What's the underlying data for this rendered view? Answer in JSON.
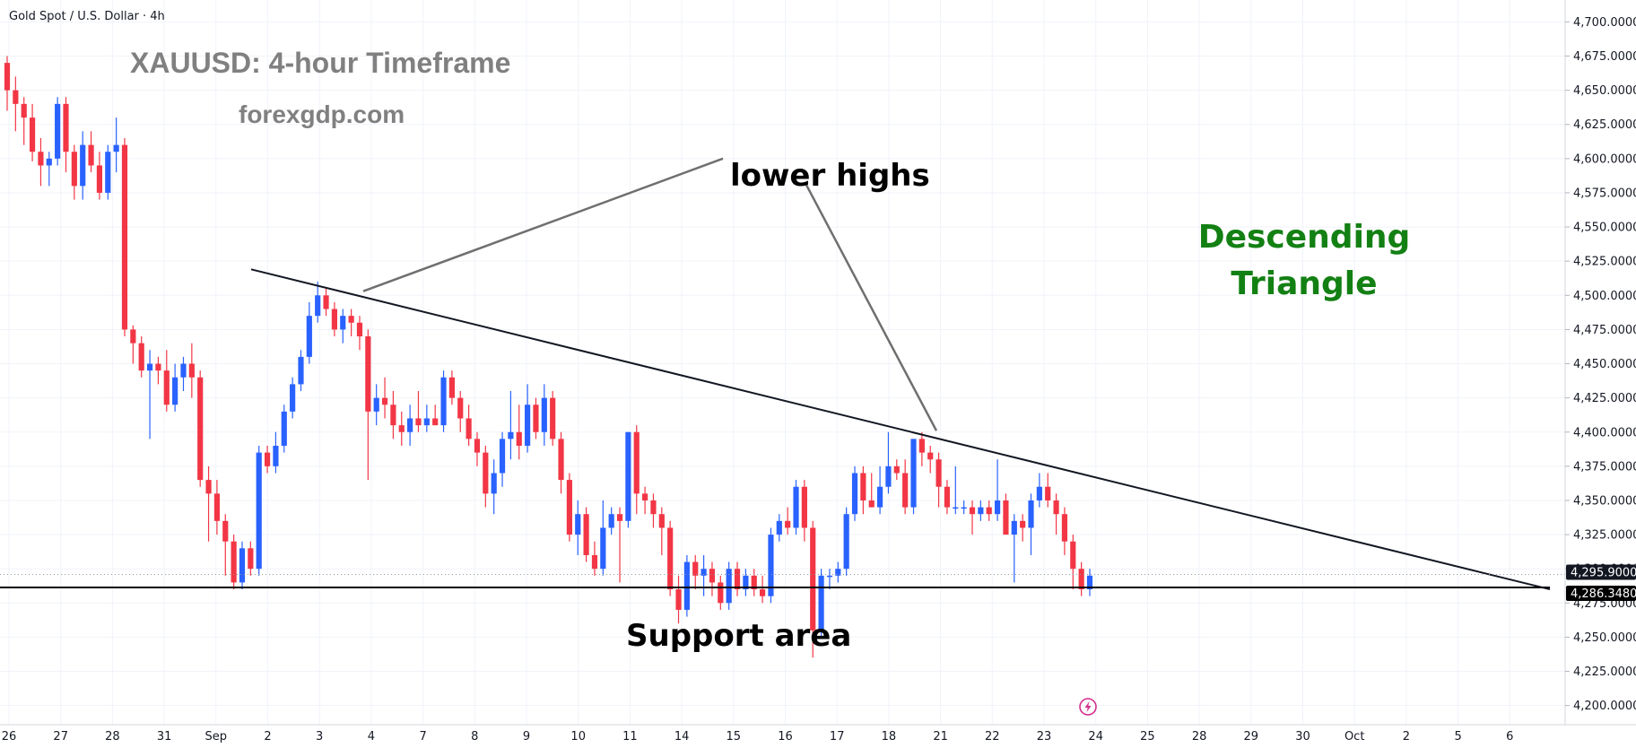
{
  "header": {
    "symbol_line": "Gold Spot / U.S. Dollar · 4h"
  },
  "title": "XAUUSD: 4-hour Timeframe",
  "site": "forexgdp.com",
  "annotations": {
    "lower_highs": "lower highs",
    "support": "Support area",
    "pattern_line1": "Descending",
    "pattern_line2": "Triangle"
  },
  "colors": {
    "up": "#2962ff",
    "down": "#f23645",
    "pattern_text": "#138013",
    "muted_text": "#808080",
    "trendline": "#131722",
    "grid": "#f0f3fa"
  },
  "icons": {
    "bottom": "lightning-icon"
  },
  "chart_data": {
    "type": "candlestick",
    "title": "XAUUSD: 4-hour Timeframe",
    "timeframe": "4h",
    "instrument": "Gold Spot / U.S. Dollar",
    "ylim": [
      4186,
      4716
    ],
    "y_ticks": [
      "4,700.0000",
      "4,675.0000",
      "4,650.0000",
      "4,625.0000",
      "4,600.0000",
      "4,575.0000",
      "4,550.0000",
      "4,525.0000",
      "4,500.0000",
      "4,475.0000",
      "4,450.0000",
      "4,425.0000",
      "4,400.0000",
      "4,375.0000",
      "4,350.0000",
      "4,325.0000",
      "4,300.0000",
      "4,275.0000",
      "4,250.0000",
      "4,225.0000",
      "4,200.0000"
    ],
    "x_ticks": [
      "26",
      "27",
      "28",
      "31",
      "Sep",
      "2",
      "3",
      "4",
      "7",
      "8",
      "9",
      "10",
      "11",
      "14",
      "15",
      "16",
      "17",
      "18",
      "21",
      "22",
      "23",
      "24",
      "25",
      "28",
      "29",
      "30",
      "Oct",
      "2",
      "5",
      "6"
    ],
    "price_labels": [
      {
        "label": "4,295.9000",
        "value": 4295.9,
        "style": "current"
      },
      {
        "label": "4,286.3480",
        "value": 4286.348,
        "style": "support"
      }
    ],
    "support_level": 4286.348,
    "current_price": 4295.9,
    "grid": true,
    "candles": [
      [
        4670,
        4675,
        4635,
        4650
      ],
      [
        4650,
        4660,
        4620,
        4640
      ],
      [
        4640,
        4645,
        4610,
        4630
      ],
      [
        4630,
        4640,
        4598,
        4605
      ],
      [
        4605,
        4615,
        4580,
        4595
      ],
      [
        4595,
        4605,
        4580,
        4600
      ],
      [
        4600,
        4645,
        4595,
        4640
      ],
      [
        4640,
        4645,
        4590,
        4605
      ],
      [
        4605,
        4610,
        4570,
        4580
      ],
      [
        4580,
        4620,
        4570,
        4610
      ],
      [
        4610,
        4620,
        4590,
        4595
      ],
      [
        4595,
        4605,
        4570,
        4575
      ],
      [
        4575,
        4610,
        4570,
        4605
      ],
      [
        4605,
        4630,
        4590,
        4610
      ],
      [
        4610,
        4615,
        4470,
        4475
      ],
      [
        4475,
        4478,
        4450,
        4465
      ],
      [
        4465,
        4470,
        4440,
        4445
      ],
      [
        4445,
        4460,
        4395,
        4450
      ],
      [
        4450,
        4455,
        4435,
        4445
      ],
      [
        4445,
        4460,
        4415,
        4420
      ],
      [
        4420,
        4450,
        4415,
        4440
      ],
      [
        4440,
        4455,
        4430,
        4450
      ],
      [
        4450,
        4465,
        4425,
        4440
      ],
      [
        4440,
        4445,
        4360,
        4365
      ],
      [
        4365,
        4375,
        4320,
        4355
      ],
      [
        4355,
        4365,
        4325,
        4335
      ],
      [
        4335,
        4340,
        4295,
        4320
      ],
      [
        4320,
        4325,
        4285,
        4290
      ],
      [
        4290,
        4320,
        4285,
        4315
      ],
      [
        4315,
        4320,
        4295,
        4300
      ],
      [
        4300,
        4390,
        4295,
        4385
      ],
      [
        4385,
        4390,
        4370,
        4375
      ],
      [
        4375,
        4400,
        4370,
        4390
      ],
      [
        4390,
        4420,
        4385,
        4415
      ],
      [
        4415,
        4440,
        4410,
        4435
      ],
      [
        4435,
        4460,
        4430,
        4455
      ],
      [
        4455,
        4495,
        4450,
        4485
      ],
      [
        4485,
        4510,
        4480,
        4500
      ],
      [
        4500,
        4505,
        4485,
        4490
      ],
      [
        4490,
        4495,
        4470,
        4475
      ],
      [
        4475,
        4490,
        4465,
        4485
      ],
      [
        4485,
        4490,
        4470,
        4480
      ],
      [
        4480,
        4485,
        4460,
        4470
      ],
      [
        4470,
        4475,
        4365,
        4415
      ],
      [
        4415,
        4435,
        4405,
        4425
      ],
      [
        4425,
        4440,
        4410,
        4420
      ],
      [
        4420,
        4430,
        4395,
        4405
      ],
      [
        4405,
        4415,
        4390,
        4400
      ],
      [
        4400,
        4420,
        4390,
        4410
      ],
      [
        4410,
        4430,
        4400,
        4405
      ],
      [
        4405,
        4420,
        4400,
        4410
      ],
      [
        4410,
        4420,
        4405,
        4405
      ],
      [
        4405,
        4445,
        4400,
        4440
      ],
      [
        4440,
        4445,
        4420,
        4425
      ],
      [
        4425,
        4430,
        4400,
        4410
      ],
      [
        4410,
        4420,
        4390,
        4395
      ],
      [
        4395,
        4400,
        4375,
        4385
      ],
      [
        4385,
        4390,
        4345,
        4355
      ],
      [
        4355,
        4380,
        4340,
        4370
      ],
      [
        4370,
        4400,
        4360,
        4395
      ],
      [
        4395,
        4430,
        4380,
        4400
      ],
      [
        4400,
        4420,
        4380,
        4390
      ],
      [
        4390,
        4435,
        4385,
        4420
      ],
      [
        4420,
        4425,
        4395,
        4400
      ],
      [
        4400,
        4435,
        4390,
        4425
      ],
      [
        4425,
        4430,
        4390,
        4395
      ],
      [
        4395,
        4400,
        4355,
        4365
      ],
      [
        4365,
        4370,
        4320,
        4325
      ],
      [
        4325,
        4350,
        4310,
        4340
      ],
      [
        4340,
        4345,
        4305,
        4310
      ],
      [
        4310,
        4320,
        4295,
        4300
      ],
      [
        4300,
        4350,
        4295,
        4330
      ],
      [
        4330,
        4345,
        4325,
        4340
      ],
      [
        4340,
        4345,
        4290,
        4335
      ],
      [
        4335,
        4400,
        4330,
        4400
      ],
      [
        4400,
        4405,
        4340,
        4355
      ],
      [
        4355,
        4360,
        4340,
        4350
      ],
      [
        4350,
        4355,
        4330,
        4340
      ],
      [
        4340,
        4345,
        4310,
        4330
      ],
      [
        4330,
        4335,
        4280,
        4285
      ],
      [
        4285,
        4295,
        4260,
        4270
      ],
      [
        4270,
        4310,
        4265,
        4305
      ],
      [
        4305,
        4310,
        4285,
        4295
      ],
      [
        4295,
        4310,
        4280,
        4300
      ],
      [
        4300,
        4305,
        4280,
        4290
      ],
      [
        4290,
        4295,
        4270,
        4275
      ],
      [
        4275,
        4305,
        4270,
        4300
      ],
      [
        4300,
        4305,
        4280,
        4285
      ],
      [
        4285,
        4300,
        4280,
        4295
      ],
      [
        4295,
        4300,
        4280,
        4285
      ],
      [
        4285,
        4295,
        4275,
        4280
      ],
      [
        4280,
        4330,
        4275,
        4325
      ],
      [
        4325,
        4340,
        4320,
        4335
      ],
      [
        4335,
        4345,
        4325,
        4330
      ],
      [
        4330,
        4365,
        4325,
        4360
      ],
      [
        4360,
        4365,
        4320,
        4330
      ],
      [
        4330,
        4335,
        4235,
        4255
      ],
      [
        4255,
        4300,
        4250,
        4295
      ],
      [
        4295,
        4300,
        4285,
        4295
      ],
      [
        4295,
        4305,
        4290,
        4300
      ],
      [
        4300,
        4345,
        4295,
        4340
      ],
      [
        4340,
        4375,
        4335,
        4370
      ],
      [
        4370,
        4375,
        4340,
        4350
      ],
      [
        4350,
        4370,
        4345,
        4345
      ],
      [
        4345,
        4375,
        4340,
        4360
      ],
      [
        4360,
        4400,
        4355,
        4375
      ],
      [
        4375,
        4380,
        4365,
        4370
      ],
      [
        4370,
        4380,
        4340,
        4345
      ],
      [
        4345,
        4395,
        4340,
        4395
      ],
      [
        4395,
        4400,
        4375,
        4385
      ],
      [
        4385,
        4390,
        4370,
        4380
      ],
      [
        4380,
        4385,
        4345,
        4360
      ],
      [
        4360,
        4365,
        4340,
        4345
      ],
      [
        4345,
        4375,
        4340,
        4345
      ],
      [
        4345,
        4350,
        4340,
        4345
      ],
      [
        4345,
        4350,
        4325,
        4340
      ],
      [
        4340,
        4350,
        4335,
        4345
      ],
      [
        4345,
        4350,
        4335,
        4340
      ],
      [
        4340,
        4380,
        4335,
        4350
      ],
      [
        4350,
        4355,
        4325,
        4325
      ],
      [
        4325,
        4340,
        4290,
        4335
      ],
      [
        4335,
        4340,
        4320,
        4330
      ],
      [
        4330,
        4355,
        4310,
        4350
      ],
      [
        4350,
        4370,
        4345,
        4360
      ],
      [
        4360,
        4370,
        4345,
        4350
      ],
      [
        4350,
        4355,
        4325,
        4340
      ],
      [
        4340,
        4345,
        4310,
        4320
      ],
      [
        4320,
        4325,
        4285,
        4300
      ],
      [
        4300,
        4305,
        4280,
        4285
      ],
      [
        4285,
        4300,
        4280,
        4295
      ]
    ]
  }
}
